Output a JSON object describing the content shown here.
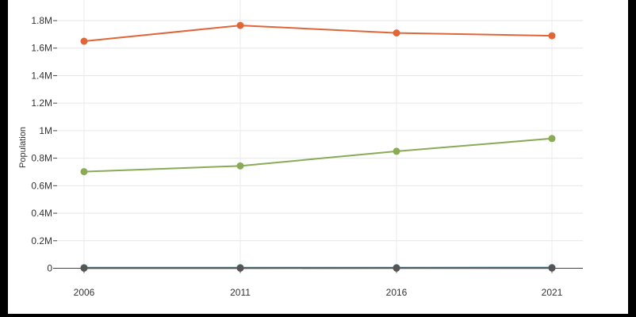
{
  "chart_data": {
    "type": "line",
    "title": "",
    "xlabel": "",
    "ylabel": "Population",
    "x": [
      "2006",
      "2011",
      "2016",
      "2021"
    ],
    "ylim": [
      0,
      1800000
    ],
    "yticks": [
      0,
      200000,
      400000,
      600000,
      800000,
      1000000,
      1200000,
      1400000,
      1600000,
      1800000
    ],
    "ytick_labels": [
      "0",
      "0.2M",
      "0.4M",
      "0.6M",
      "0.8M",
      "1M",
      "1.2M",
      "1.4M",
      "1.6M",
      "1.8M"
    ],
    "grid": true,
    "legend": "none",
    "series": [
      {
        "color": "#e0663a",
        "values": [
          1650000,
          1765000,
          1710000,
          1690000
        ]
      },
      {
        "color": "#8aab55",
        "values": [
          702000,
          744000,
          850000,
          943000
        ]
      },
      {
        "color": "#3a8fa6",
        "values": [
          4000,
          4000,
          4500,
          5000
        ]
      },
      {
        "color": "#555555",
        "values": [
          1000,
          1000,
          1200,
          1500
        ]
      }
    ]
  }
}
